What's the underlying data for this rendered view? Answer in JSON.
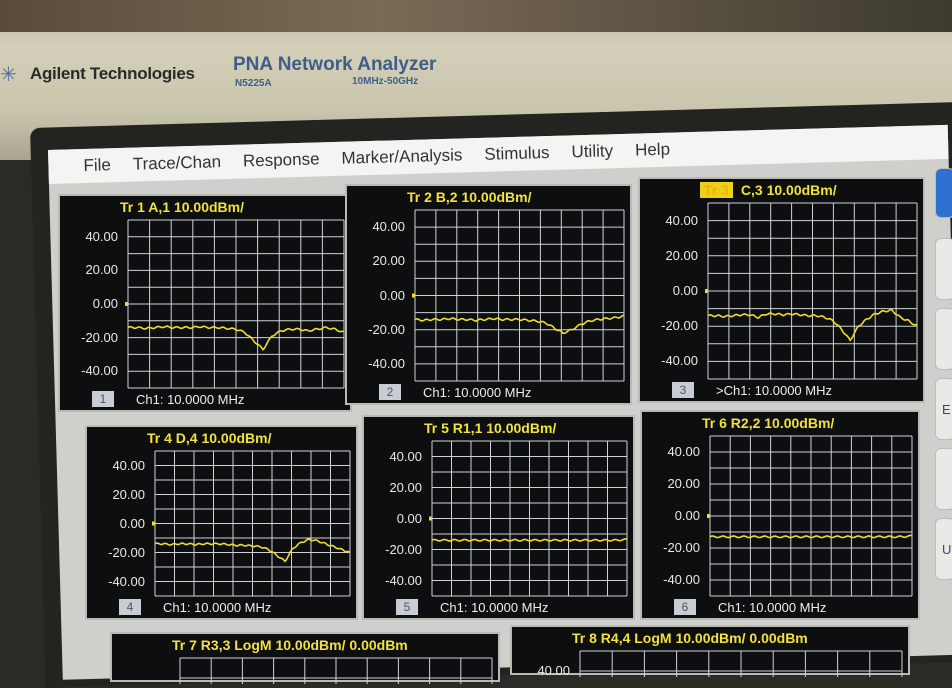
{
  "instrument": {
    "brand": "Agilent Technologies",
    "product": "PNA Network Analyzer",
    "model": "N5225A",
    "range": "10MHz-50GHz"
  },
  "menu": [
    "File",
    "Trace/Chan",
    "Response",
    "Marker/Analysis",
    "Stimulus",
    "Utility",
    "Help"
  ],
  "colors": {
    "trace": "#f0dc28",
    "grid": "#cfd2d6",
    "background": "#0d0e10"
  },
  "panels": [
    {
      "trace": "Tr 1",
      "title": "A,1 10.00dBm/",
      "window": "1",
      "footer": "Ch1:  10.0000 MHz",
      "y_ticks": [
        "40.00",
        "20.00",
        "0.00",
        "-20.00",
        "-40.00"
      ],
      "ylim": [
        -50,
        50
      ],
      "active": false,
      "trace_db": [
        -14,
        -14,
        -14.5,
        -14,
        -13.5,
        -14,
        -14,
        -14,
        -13.5,
        -14,
        -14,
        -14.5,
        -15,
        -17,
        -22,
        -27,
        -19,
        -16,
        -15,
        -15,
        -16,
        -15,
        -14,
        -15,
        -17
      ]
    },
    {
      "trace": "Tr 2",
      "title": "B,2 10.00dBm/",
      "window": "2",
      "footer": "Ch1:  10.0000 MHz",
      "y_ticks": [
        "40.00",
        "20.00",
        "0.00",
        "-20.00",
        "-40.00"
      ],
      "ylim": [
        -50,
        50
      ],
      "active": false,
      "trace_db": [
        -14,
        -14.5,
        -14,
        -14,
        -13.5,
        -14,
        -14,
        -14.5,
        -14,
        -13.5,
        -14,
        -14,
        -14,
        -14.5,
        -15,
        -16,
        -19,
        -22,
        -20,
        -17,
        -15,
        -14,
        -13.5,
        -13,
        -12
      ]
    },
    {
      "trace": "Tr 3",
      "title": "C,3 10.00dBm/",
      "window": "3",
      "footer": ">Ch1:  10.0000 MHz",
      "y_ticks": [
        "40.00",
        "20.00",
        "0.00",
        "-20.00",
        "-40.00"
      ],
      "ylim": [
        -50,
        50
      ],
      "active": true,
      "trace_db": [
        -14,
        -14,
        -14.5,
        -14,
        -13.5,
        -13.5,
        -15,
        -13,
        -13,
        -13.5,
        -13,
        -13.5,
        -14,
        -14,
        -15,
        -17,
        -22,
        -28,
        -20,
        -16,
        -13,
        -11.5,
        -11,
        -15,
        -17,
        -20
      ]
    },
    {
      "trace": "Tr 4",
      "title": "D,4 10.00dBm/",
      "window": "4",
      "footer": "Ch1:  10.0000 MHz",
      "y_ticks": [
        "40.00",
        "20.00",
        "0.00",
        "-20.00",
        "-40.00"
      ],
      "ylim": [
        -50,
        50
      ],
      "active": false,
      "trace_db": [
        -14,
        -14,
        -14.5,
        -14,
        -14,
        -14.5,
        -14,
        -14,
        -14,
        -14.5,
        -15,
        -15,
        -15.5,
        -16,
        -18,
        -22,
        -26,
        -17,
        -13,
        -11,
        -12,
        -14,
        -16,
        -18,
        -20
      ]
    },
    {
      "trace": "Tr 5",
      "title": "R1,1 10.00dBm/",
      "window": "5",
      "footer": "Ch1:  10.0000 MHz",
      "y_ticks": [
        "40.00",
        "20.00",
        "0.00",
        "-20.00",
        "-40.00"
      ],
      "ylim": [
        -50,
        50
      ],
      "active": false,
      "trace_db": [
        -14,
        -14,
        -14,
        -14,
        -14,
        -14,
        -14,
        -14,
        -14,
        -14,
        -14,
        -14,
        -14,
        -14,
        -14,
        -14,
        -14,
        -14,
        -14,
        -14,
        -13.5
      ]
    },
    {
      "trace": "Tr 6",
      "title": "R2,2 10.00dBm/",
      "window": "6",
      "footer": "Ch1:  10.0000 MHz",
      "y_ticks": [
        "40.00",
        "20.00",
        "0.00",
        "-20.00",
        "-40.00"
      ],
      "ylim": [
        -50,
        50
      ],
      "active": false,
      "trace_db": [
        -13,
        -13,
        -13,
        -13,
        -13,
        -13,
        -13,
        -13,
        -13,
        -13,
        -13,
        -13,
        -13,
        -13,
        -13,
        -13,
        -13,
        -13,
        -13,
        -13,
        -12.5
      ]
    },
    {
      "trace": "Tr 7",
      "title": "R3,3 LogM 10.00dBm/  0.00dBm",
      "window": "",
      "footer": "",
      "y_ticks": [],
      "ylim": [
        -50,
        50
      ],
      "active": false,
      "trace_db": []
    },
    {
      "trace": "Tr 8",
      "title": "R4,4 LogM 10.00dBm/  0.00dBm",
      "window": "",
      "footer": "",
      "y_ticks": [
        "40.00"
      ],
      "ylim": [
        -50,
        50
      ],
      "active": false,
      "trace_db": []
    }
  ],
  "side_buttons": [
    "",
    "",
    "",
    "E",
    "",
    "Ur"
  ]
}
